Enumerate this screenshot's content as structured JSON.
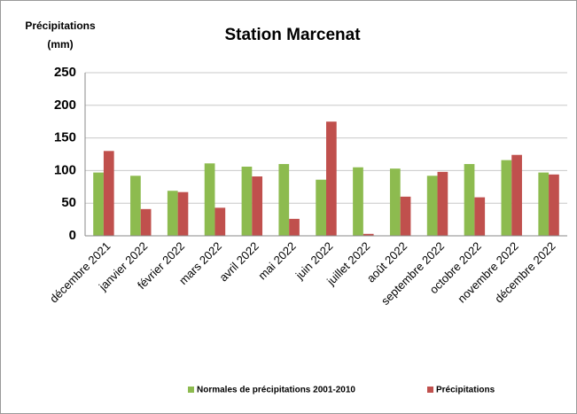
{
  "chart_data": {
    "type": "bar",
    "title": "Station Marcenat",
    "ylabel": [
      "Précipitations",
      "(mm)"
    ],
    "categories": [
      "décembre 2021",
      "janvier 2022",
      "février 2022",
      "mars 2022",
      "avril 2022",
      "mai 2022",
      "juin 2022",
      "juillet 2022",
      "août 2022",
      "septembre 2022",
      "octobre 2022",
      "novembre 2022",
      "décembre 2022"
    ],
    "series": [
      {
        "name": "Normales de précipitations 2001-2010",
        "color": "#8dbb4f",
        "values": [
          97,
          92,
          69,
          111,
          106,
          110,
          86,
          105,
          103,
          92,
          110,
          116,
          97
        ]
      },
      {
        "name": "Précipitations",
        "color": "#c0504d",
        "values": [
          130,
          41,
          67,
          43,
          91,
          26,
          175,
          3,
          60,
          98,
          59,
          124,
          94
        ]
      }
    ],
    "ylim": [
      0,
      250
    ],
    "yticks": [
      0,
      50,
      100,
      150,
      200,
      250
    ],
    "grid": true,
    "legend": "bottom"
  }
}
